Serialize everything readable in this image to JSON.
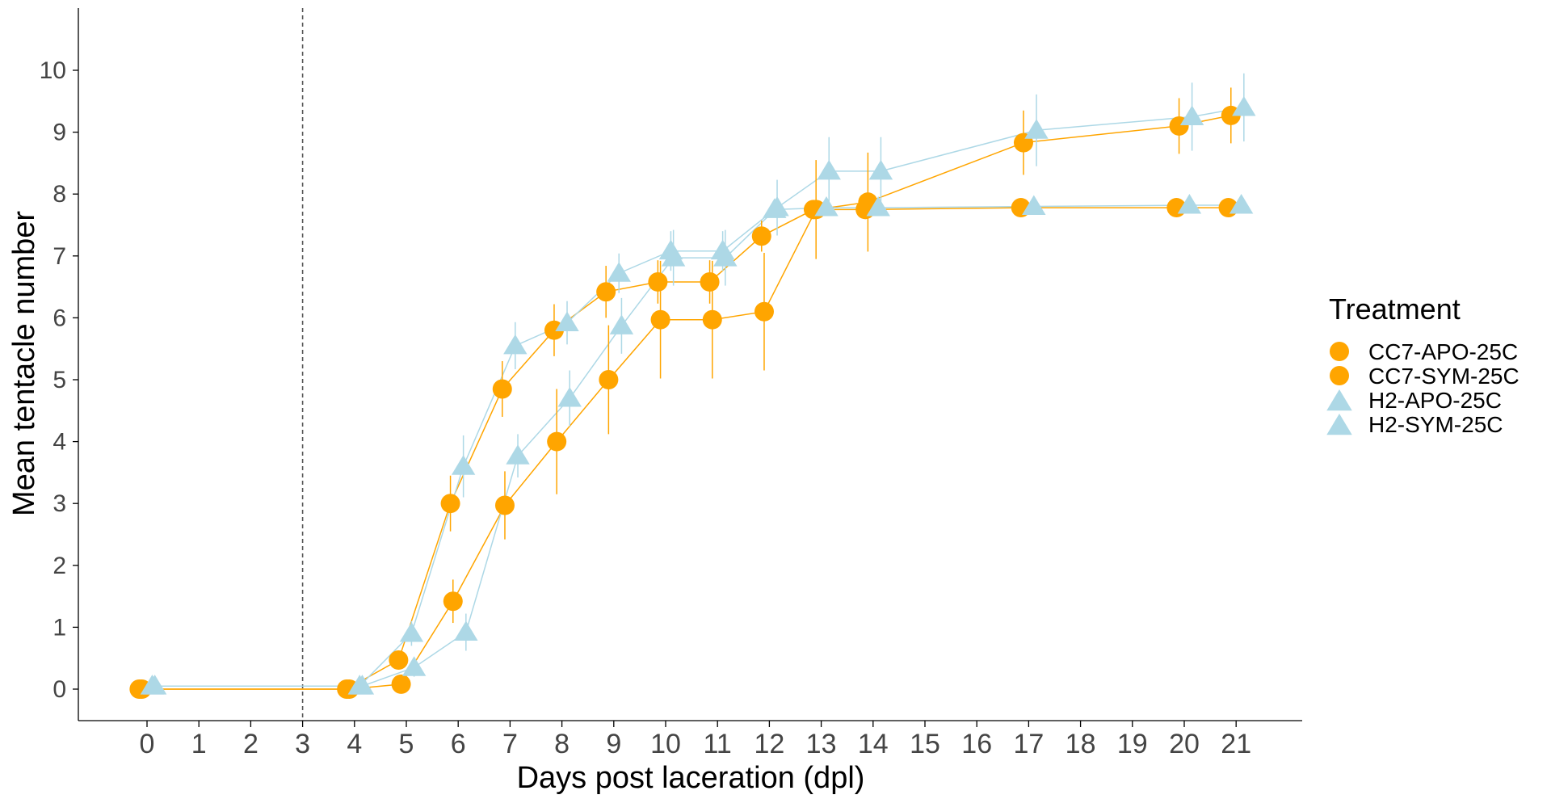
{
  "chart_data": {
    "type": "line",
    "xlabel": "Days post laceration (dpl)",
    "ylabel": "Mean tentacle number",
    "xlim": [
      -1.2,
      22.5
    ],
    "ylim": [
      -0.5,
      11
    ],
    "x_ticks": [
      0,
      1,
      2,
      3,
      4,
      5,
      6,
      7,
      8,
      9,
      10,
      11,
      12,
      13,
      14,
      15,
      16,
      17,
      18,
      19,
      20,
      21
    ],
    "y_ticks": [
      0,
      1,
      2,
      3,
      4,
      5,
      6,
      7,
      8,
      9,
      10
    ],
    "reference_line": {
      "x": 3,
      "style": "dashed"
    },
    "grid": false,
    "legend": {
      "title": "Treatment",
      "position": "right"
    },
    "colors": {
      "CC7": "#FFA500",
      "H2": "#ADD8E6",
      "axis": "#000000",
      "ref": "#555555"
    },
    "series": [
      {
        "name": "CC7-APO-25C",
        "color": "#FFA500",
        "marker": "circle",
        "points": [
          {
            "x": -0.15,
            "y": 0.0,
            "err": 0.0
          },
          {
            "x": 3.85,
            "y": 0.0,
            "err": 0.0
          },
          {
            "x": 4.85,
            "y": 0.47,
            "err": 0.12
          },
          {
            "x": 5.85,
            "y": 3.0,
            "err": 0.45
          },
          {
            "x": 6.85,
            "y": 4.85,
            "err": 0.45
          },
          {
            "x": 7.85,
            "y": 5.8,
            "err": 0.42
          },
          {
            "x": 8.85,
            "y": 6.42,
            "err": 0.42
          },
          {
            "x": 9.85,
            "y": 6.58,
            "err": 0.35
          },
          {
            "x": 10.85,
            "y": 6.58,
            "err": 0.35
          },
          {
            "x": 11.85,
            "y": 7.32,
            "err": 0.25
          },
          {
            "x": 12.85,
            "y": 7.75,
            "err": 0.12
          },
          {
            "x": 13.85,
            "y": 7.75,
            "err": 0.12
          },
          {
            "x": 16.85,
            "y": 7.78,
            "err": 0.08
          },
          {
            "x": 19.85,
            "y": 7.78,
            "err": 0.08
          },
          {
            "x": 20.85,
            "y": 7.78,
            "err": 0.08
          }
        ]
      },
      {
        "name": "CC7-SYM-25C",
        "color": "#FFA500",
        "marker": "circle",
        "points": [
          {
            "x": -0.1,
            "y": 0.0,
            "err": 0.0
          },
          {
            "x": 3.9,
            "y": 0.0,
            "err": 0.0
          },
          {
            "x": 4.9,
            "y": 0.08,
            "err": 0.1
          },
          {
            "x": 5.9,
            "y": 1.42,
            "err": 0.35
          },
          {
            "x": 6.9,
            "y": 2.97,
            "err": 0.55
          },
          {
            "x": 7.9,
            "y": 4.0,
            "err": 0.85
          },
          {
            "x": 8.9,
            "y": 5.0,
            "err": 0.88
          },
          {
            "x": 9.9,
            "y": 5.97,
            "err": 0.95
          },
          {
            "x": 10.9,
            "y": 5.97,
            "err": 0.95
          },
          {
            "x": 11.9,
            "y": 6.1,
            "err": 0.95
          },
          {
            "x": 12.9,
            "y": 7.75,
            "err": 0.8
          },
          {
            "x": 13.9,
            "y": 7.87,
            "err": 0.8
          },
          {
            "x": 16.9,
            "y": 8.83,
            "err": 0.52
          },
          {
            "x": 19.9,
            "y": 9.1,
            "err": 0.45
          },
          {
            "x": 20.9,
            "y": 9.27,
            "err": 0.45
          }
        ]
      },
      {
        "name": "H2-APO-25C",
        "color": "#ADD8E6",
        "marker": "triangle",
        "points": [
          {
            "x": 0.1,
            "y": 0.05,
            "err": 0.0
          },
          {
            "x": 4.1,
            "y": 0.05,
            "err": 0.0
          },
          {
            "x": 5.1,
            "y": 0.9,
            "err": 0.2
          },
          {
            "x": 6.1,
            "y": 3.6,
            "err": 0.5
          },
          {
            "x": 7.1,
            "y": 5.55,
            "err": 0.38
          },
          {
            "x": 8.1,
            "y": 5.92,
            "err": 0.35
          },
          {
            "x": 9.1,
            "y": 6.72,
            "err": 0.32
          },
          {
            "x": 10.1,
            "y": 7.08,
            "err": 0.32
          },
          {
            "x": 11.1,
            "y": 7.08,
            "err": 0.32
          },
          {
            "x": 12.1,
            "y": 7.75,
            "err": 0.12
          },
          {
            "x": 13.1,
            "y": 7.78,
            "err": 0.1
          },
          {
            "x": 14.1,
            "y": 7.78,
            "err": 0.1
          },
          {
            "x": 17.1,
            "y": 7.8,
            "err": 0.08
          },
          {
            "x": 20.1,
            "y": 7.82,
            "err": 0.08
          },
          {
            "x": 21.1,
            "y": 7.82,
            "err": 0.08
          }
        ]
      },
      {
        "name": "H2-SYM-25C",
        "color": "#ADD8E6",
        "marker": "triangle",
        "points": [
          {
            "x": 0.15,
            "y": 0.05,
            "err": 0.0
          },
          {
            "x": 4.15,
            "y": 0.05,
            "err": 0.0
          },
          {
            "x": 5.15,
            "y": 0.35,
            "err": 0.15
          },
          {
            "x": 6.15,
            "y": 0.92,
            "err": 0.3
          },
          {
            "x": 7.15,
            "y": 3.77,
            "err": 0.35
          },
          {
            "x": 8.15,
            "y": 4.7,
            "err": 0.45
          },
          {
            "x": 9.15,
            "y": 5.87,
            "err": 0.45
          },
          {
            "x": 10.15,
            "y": 6.97,
            "err": 0.45
          },
          {
            "x": 11.15,
            "y": 6.97,
            "err": 0.45
          },
          {
            "x": 12.15,
            "y": 7.78,
            "err": 0.45
          },
          {
            "x": 13.15,
            "y": 8.37,
            "err": 0.55
          },
          {
            "x": 14.15,
            "y": 8.37,
            "err": 0.55
          },
          {
            "x": 17.15,
            "y": 9.03,
            "err": 0.58
          },
          {
            "x": 20.15,
            "y": 9.25,
            "err": 0.55
          },
          {
            "x": 21.15,
            "y": 9.4,
            "err": 0.55
          }
        ]
      }
    ]
  }
}
